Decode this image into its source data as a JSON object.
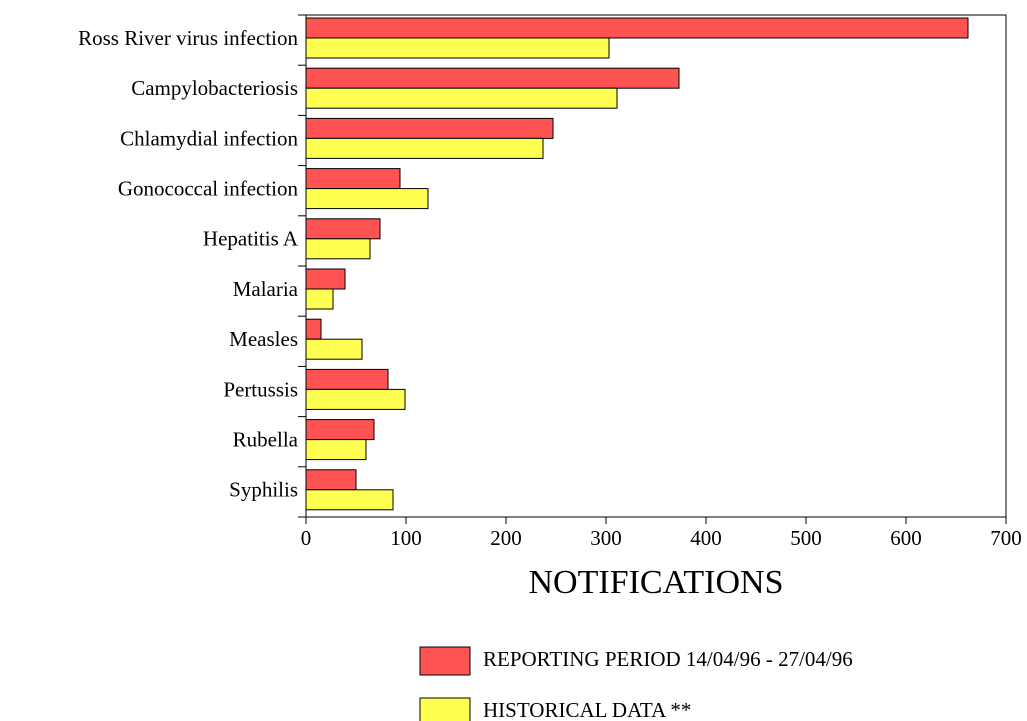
{
  "chart_data": {
    "type": "bar",
    "orientation": "horizontal",
    "x_label": "NOTIFICATIONS",
    "categories": [
      "Ross River virus infection",
      "Campylobacteriosis",
      "Chlamydial infection",
      "Gonococcal infection",
      "Hepatitis A",
      "Malaria",
      "Measles",
      "Pertussis",
      "Rubella",
      "Syphilis"
    ],
    "series": [
      {
        "name": "REPORTING PERIOD 14/04/96 - 27/04/96",
        "color": "#ff5252",
        "values": [
          662,
          373,
          247,
          94,
          74,
          39,
          15,
          82,
          68,
          50
        ]
      },
      {
        "name": "HISTORICAL DATA **",
        "color": "#ffff52",
        "values": [
          303,
          311,
          237,
          122,
          64,
          27,
          56,
          99,
          60,
          87
        ]
      }
    ],
    "xlim": [
      0,
      700
    ],
    "xticks": [
      0,
      100,
      200,
      300,
      400,
      500,
      600,
      700
    ],
    "grid": false,
    "legend": "bottom"
  }
}
